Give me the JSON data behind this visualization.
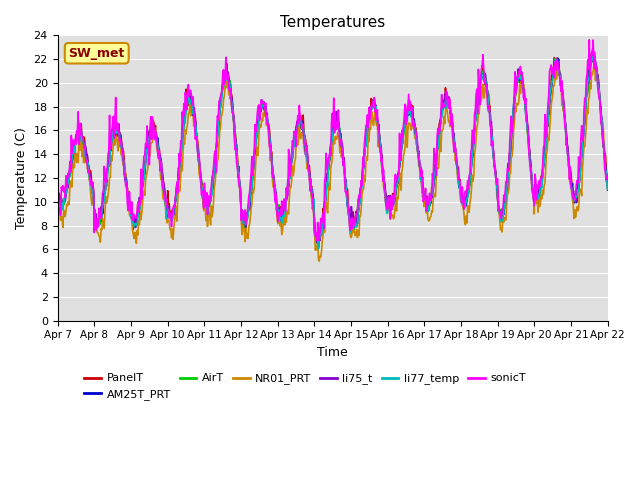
{
  "title": "Temperatures",
  "xlabel": "Time",
  "ylabel": "Temperature (C)",
  "ylim": [
    0,
    24
  ],
  "yticks": [
    0,
    2,
    4,
    6,
    8,
    10,
    12,
    14,
    16,
    18,
    20,
    22,
    24
  ],
  "x_labels": [
    "Apr 7",
    "Apr 8",
    "Apr 9",
    "Apr 10",
    "Apr 11",
    "Apr 12",
    "Apr 13",
    "Apr 14",
    "Apr 15",
    "Apr 16",
    "Apr 17",
    "Apr 18",
    "Apr 19",
    "Apr 20",
    "Apr 21",
    "Apr 22"
  ],
  "series_order": [
    "PanelT",
    "AM25T_PRT",
    "AirT",
    "NR01_PRT",
    "li75_t",
    "li77_temp",
    "sonicT"
  ],
  "series": {
    "PanelT": {
      "color": "#cc0000",
      "lw": 1.2
    },
    "AM25T_PRT": {
      "color": "#0000cc",
      "lw": 1.2
    },
    "AirT": {
      "color": "#00cc00",
      "lw": 1.2
    },
    "NR01_PRT": {
      "color": "#cc8800",
      "lw": 1.2
    },
    "li75_t": {
      "color": "#8800cc",
      "lw": 1.2
    },
    "li77_temp": {
      "color": "#00bbbb",
      "lw": 1.2
    },
    "sonicT": {
      "color": "#ff00ff",
      "lw": 1.2
    }
  },
  "annotation": {
    "text": "SW_met",
    "facecolor": "#ffff99",
    "edgecolor": "#cc8800",
    "textcolor": "#880000",
    "fontsize": 9
  },
  "fig_bg": "#ffffff",
  "plot_bg": "#e0e0e0",
  "grid_color": "#ffffff",
  "figsize": [
    6.4,
    4.8
  ],
  "dpi": 100,
  "legend_ncol": 6,
  "legend_fontsize": 8
}
